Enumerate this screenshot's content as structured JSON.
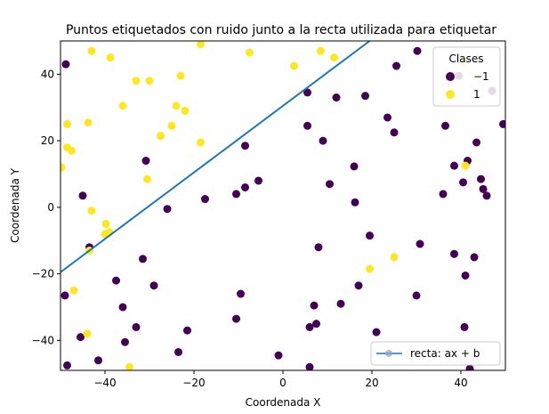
{
  "chart_data": {
    "type": "scatter",
    "title": "Puntos etiquetados con ruido junto a la recta utilizada para etiquetar",
    "xlabel": "Coordenada X",
    "ylabel": "Coordenada Y",
    "xlim": [
      -50,
      50
    ],
    "ylim": [
      -49,
      50
    ],
    "xticks": [
      -40,
      -20,
      0,
      20,
      40
    ],
    "yticks": [
      -40,
      -20,
      0,
      20,
      40
    ],
    "xtick_labels": [
      "−40",
      "−20",
      "0",
      "20",
      "40"
    ],
    "ytick_labels": [
      "−40",
      "−20",
      "0",
      "20",
      "40"
    ],
    "grid": false,
    "legend_classes": {
      "title": "Clases",
      "placement": "top-right",
      "entries": [
        {
          "label": "−1",
          "color": "#440154"
        },
        {
          "label": "1",
          "color": "#fde725"
        }
      ]
    },
    "legend_line": {
      "placement": "bottom-right",
      "label": "recta: ax + b",
      "color": "#1f77b4"
    },
    "line": {
      "name": "recta: ax + b",
      "x": [
        -50,
        19.5
      ],
      "y": [
        -19.5,
        50
      ]
    },
    "series": [
      {
        "class": "-1",
        "color": "#440154",
        "points": [
          [
            -48.8,
            43
          ],
          [
            -49,
            -26.5
          ],
          [
            -48.5,
            -47.5
          ],
          [
            -45.5,
            -39
          ],
          [
            -45,
            3.5
          ],
          [
            -43.5,
            -12
          ],
          [
            -41.5,
            -46
          ],
          [
            -37.5,
            -22
          ],
          [
            -36,
            -30
          ],
          [
            -35.5,
            -40.5
          ],
          [
            -33,
            -36
          ],
          [
            -31.5,
            -15.5
          ],
          [
            -30.8,
            14
          ],
          [
            -29,
            -23.5
          ],
          [
            -26,
            -0.5
          ],
          [
            -23.5,
            -43.5
          ],
          [
            -21.5,
            -37
          ],
          [
            -17.5,
            2.5
          ],
          [
            -10.5,
            4
          ],
          [
            -10.5,
            -33.5
          ],
          [
            -9.5,
            -26
          ],
          [
            -8.5,
            6
          ],
          [
            -8.5,
            18.5
          ],
          [
            -5.5,
            8
          ],
          [
            -1,
            -44.5
          ],
          [
            5.5,
            34.5
          ],
          [
            5.5,
            24.5
          ],
          [
            6,
            -36
          ],
          [
            6,
            -48
          ],
          [
            7,
            -29.5
          ],
          [
            7.5,
            -35
          ],
          [
            8,
            -12
          ],
          [
            9,
            20
          ],
          [
            10.5,
            7
          ],
          [
            12,
            33
          ],
          [
            13,
            -29
          ],
          [
            16,
            12.3
          ],
          [
            16.2,
            1.5
          ],
          [
            17,
            -23.5
          ],
          [
            18.5,
            33.5
          ],
          [
            19.5,
            -8.5
          ],
          [
            21,
            -37.5
          ],
          [
            23.5,
            27
          ],
          [
            25,
            22.5
          ],
          [
            25.5,
            42.5
          ],
          [
            30,
            -26.5
          ],
          [
            30.2,
            47
          ],
          [
            30.8,
            -11
          ],
          [
            36,
            4
          ],
          [
            36.5,
            24.5
          ],
          [
            38.5,
            12.5
          ],
          [
            38.5,
            -14
          ],
          [
            39.5,
            39.5
          ],
          [
            40.5,
            7.5
          ],
          [
            41,
            -20.5
          ],
          [
            40.8,
            -36
          ],
          [
            41.5,
            14
          ],
          [
            42,
            -48.5
          ],
          [
            43,
            -15
          ],
          [
            43.5,
            19.5
          ],
          [
            44.5,
            8.5
          ],
          [
            45,
            5.5
          ],
          [
            45.8,
            3.5
          ],
          [
            47,
            35
          ],
          [
            49.5,
            25
          ]
        ]
      },
      {
        "class": "1",
        "color": "#fde725",
        "points": [
          [
            -49.8,
            12
          ],
          [
            -48.5,
            25
          ],
          [
            -48.5,
            18
          ],
          [
            -47.5,
            17
          ],
          [
            -47,
            -25
          ],
          [
            -44,
            -38
          ],
          [
            -43.5,
            -13
          ],
          [
            -43.8,
            25.5
          ],
          [
            -43,
            -1
          ],
          [
            -43,
            47
          ],
          [
            -40,
            -8
          ],
          [
            -39.8,
            -5
          ],
          [
            -39,
            -7.5
          ],
          [
            -38.8,
            45
          ],
          [
            -36,
            30.5
          ],
          [
            -34.5,
            -48
          ],
          [
            -33,
            38
          ],
          [
            -30,
            38
          ],
          [
            -30.5,
            8.5
          ],
          [
            -27.5,
            21.5
          ],
          [
            -25,
            24.5
          ],
          [
            -24,
            30.5
          ],
          [
            -23,
            39.5
          ],
          [
            -22,
            29
          ],
          [
            -18.5,
            19.5
          ],
          [
            -18.5,
            49
          ],
          [
            -7.5,
            46.5
          ],
          [
            2.5,
            42.5
          ],
          [
            8.5,
            47
          ],
          [
            11.5,
            45
          ],
          [
            19.5,
            -18.5
          ],
          [
            25,
            -15
          ],
          [
            40.5,
            43.5
          ],
          [
            41,
            12.5
          ]
        ]
      }
    ]
  }
}
